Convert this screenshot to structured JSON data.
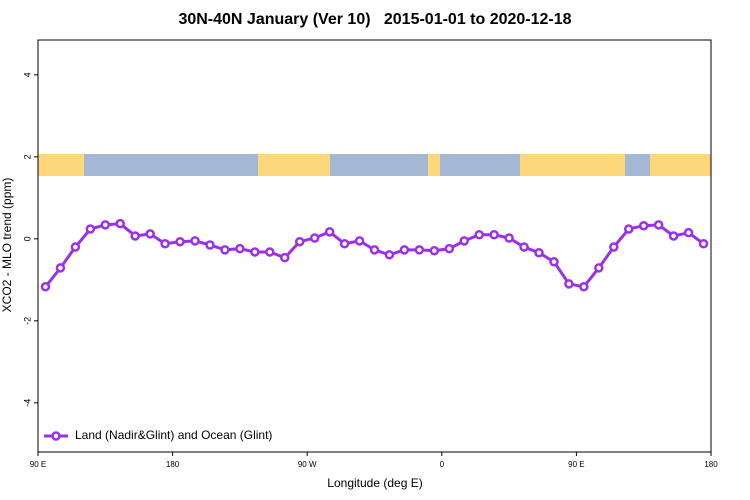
{
  "chart_data": {
    "type": "line",
    "title": "30N-40N January (Ver 10)   2015-01-01 to 2020-12-18",
    "x_label": "Longitude (deg E)",
    "y_label": "XCO2 - MLO trend (ppm)",
    "x": [
      95,
      105,
      115,
      125,
      135,
      145,
      155,
      165,
      175,
      185,
      195,
      205,
      215,
      225,
      235,
      245,
      255,
      265,
      275,
      285,
      295,
      305,
      315,
      325,
      335,
      345,
      355,
      365,
      375,
      385,
      395,
      405,
      415,
      425,
      435,
      445,
      455,
      465,
      475,
      485,
      495,
      505,
      515,
      525,
      535
    ],
    "series": [
      {
        "name": "Land (Nadir&Glint) and Ocean (Glint)",
        "color": "#9b30e8",
        "values": [
          -1.17,
          -0.71,
          -0.2,
          0.24,
          0.34,
          0.37,
          0.07,
          0.12,
          -0.12,
          -0.07,
          -0.05,
          -0.15,
          -0.27,
          -0.24,
          -0.32,
          -0.32,
          -0.46,
          -0.07,
          0.02,
          0.17,
          -0.12,
          -0.05,
          -0.27,
          -0.39,
          -0.27,
          -0.27,
          -0.29,
          -0.24,
          -0.05,
          0.1,
          0.1,
          0.02,
          -0.2,
          -0.34,
          -0.56,
          -1.1,
          -1.17,
          -0.71,
          -0.2,
          0.24,
          0.32,
          0.34,
          0.07,
          0.15,
          -0.12
        ]
      }
    ],
    "xlim": [
      90,
      540
    ],
    "xticks": [
      {
        "value": 90,
        "label": "90 E"
      },
      180,
      {
        "value": 270,
        "label": "90 W"
      },
      {
        "value": 360,
        "label": "0"
      },
      {
        "value": 450,
        "label": "90 E"
      },
      {
        "value": 540,
        "label": "180"
      }
    ],
    "ylim": [
      -5.2,
      4.85
    ],
    "yticks": [
      -4,
      -2,
      0,
      2,
      4
    ],
    "legend": "bottom-left"
  }
}
